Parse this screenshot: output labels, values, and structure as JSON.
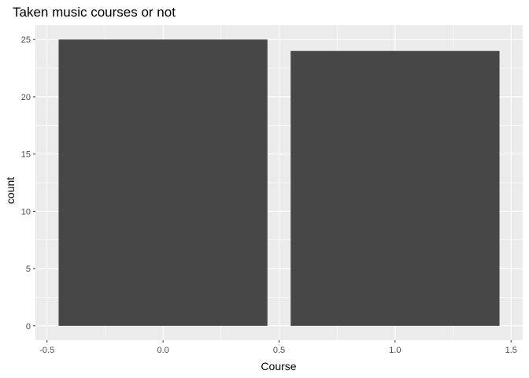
{
  "chart_data": {
    "type": "bar",
    "title": "Taken music courses or not",
    "xlabel": "Course",
    "ylabel": "count",
    "x": [
      0,
      1
    ],
    "values": [
      25,
      24
    ],
    "bar_width": 0.9,
    "xlim": [
      -0.5,
      1.5
    ],
    "ylim": [
      0,
      25
    ],
    "x_ticks": [
      -0.5,
      0.0,
      0.5,
      1.0,
      1.5
    ],
    "x_tick_labels": [
      "-0.5",
      "0.0",
      "0.5",
      "1.0",
      "1.5"
    ],
    "y_ticks": [
      0,
      5,
      10,
      15,
      20,
      25
    ],
    "y_tick_labels": [
      "0",
      "5",
      "10",
      "15",
      "20",
      "25"
    ],
    "grid": true,
    "legend": "none",
    "colors": {
      "panel_background": "#ebebeb",
      "grid_major": "#ffffff",
      "bar_fill": "#474747",
      "tick": "#333333"
    }
  }
}
